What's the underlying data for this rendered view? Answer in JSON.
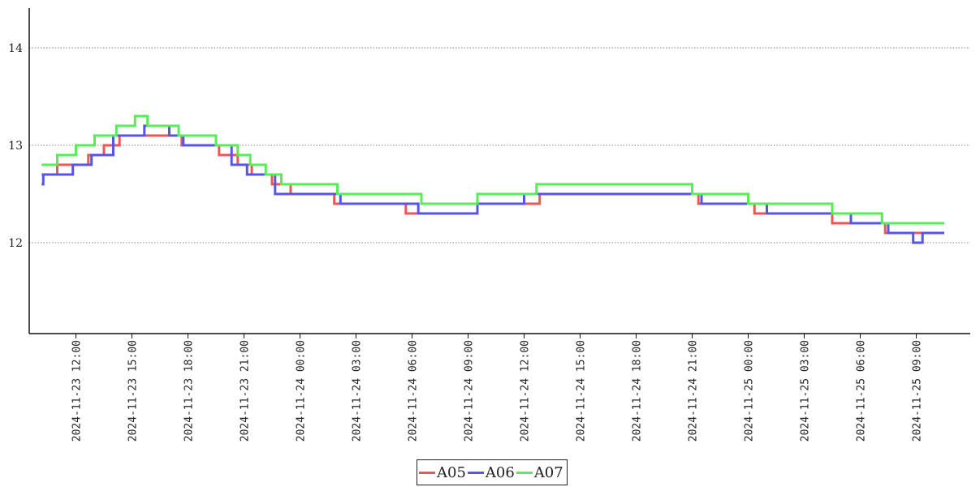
{
  "chart_data": {
    "type": "line",
    "title": "",
    "xlabel": "",
    "ylabel": "",
    "ylim": [
      11.9,
      14.4
    ],
    "xlim": [
      "2024-11-23 09:30",
      "2024-11-25 10:30"
    ],
    "yticks": [
      12,
      13,
      14
    ],
    "xticks": [
      "2024-11-23 12:00",
      "2024-11-23 15:00",
      "2024-11-23 18:00",
      "2024-11-23 21:00",
      "2024-11-24 00:00",
      "2024-11-24 03:00",
      "2024-11-24 06:00",
      "2024-11-24 09:00",
      "2024-11-24 12:00",
      "2024-11-24 15:00",
      "2024-11-24 18:00",
      "2024-11-24 21:00",
      "2024-11-25 00:00",
      "2024-11-25 03:00",
      "2024-11-25 06:00",
      "2024-11-25 09:00"
    ],
    "grid": "horizontal dotted",
    "legend_position": "bottom-center",
    "series": [
      {
        "name": "A05",
        "color": "#ee5555",
        "points": [
          [
            "2024-11-23 10:10",
            12.7
          ],
          [
            "2024-11-23 11:00",
            12.8
          ],
          [
            "2024-11-23 12:40",
            12.9
          ],
          [
            "2024-11-23 13:30",
            13.0
          ],
          [
            "2024-11-23 14:20",
            13.1
          ],
          [
            "2024-11-23 17:40",
            13.0
          ],
          [
            "2024-11-23 19:40",
            12.9
          ],
          [
            "2024-11-23 20:40",
            12.8
          ],
          [
            "2024-11-23 21:25",
            12.7
          ],
          [
            "2024-11-23 22:30",
            12.6
          ],
          [
            "2024-11-23 23:30",
            12.5
          ],
          [
            "2024-11-24 01:50",
            12.4
          ],
          [
            "2024-11-24 05:40",
            12.3
          ],
          [
            "2024-11-24 09:30",
            12.4
          ],
          [
            "2024-11-24 12:50",
            12.5
          ],
          [
            "2024-11-24 21:20",
            12.4
          ],
          [
            "2024-11-25 00:20",
            12.3
          ],
          [
            "2024-11-25 04:30",
            12.2
          ],
          [
            "2024-11-25 07:20",
            12.1
          ],
          [
            "2024-11-25 10:30",
            12.1
          ]
        ]
      },
      {
        "name": "A06",
        "color": "#5555ee",
        "points": [
          [
            "2024-11-23 10:10",
            12.6
          ],
          [
            "2024-11-23 10:15",
            12.7
          ],
          [
            "2024-11-23 11:50",
            12.8
          ],
          [
            "2024-11-23 12:50",
            12.9
          ],
          [
            "2024-11-23 14:00",
            13.1
          ],
          [
            "2024-11-23 15:40",
            13.2
          ],
          [
            "2024-11-23 17:00",
            13.1
          ],
          [
            "2024-11-23 17:45",
            13.0
          ],
          [
            "2024-11-23 19:30",
            13.0
          ],
          [
            "2024-11-23 20:20",
            12.8
          ],
          [
            "2024-11-23 21:10",
            12.7
          ],
          [
            "2024-11-23 22:40",
            12.5
          ],
          [
            "2024-11-24 02:10",
            12.4
          ],
          [
            "2024-11-24 06:20",
            12.3
          ],
          [
            "2024-11-24 09:30",
            12.4
          ],
          [
            "2024-11-24 12:00",
            12.5
          ],
          [
            "2024-11-24 21:30",
            12.4
          ],
          [
            "2024-11-25 01:00",
            12.3
          ],
          [
            "2024-11-25 05:30",
            12.2
          ],
          [
            "2024-11-25 07:30",
            12.1
          ],
          [
            "2024-11-25 08:50",
            12.0
          ],
          [
            "2024-11-25 09:20",
            12.1
          ],
          [
            "2024-11-25 10:30",
            12.1
          ]
        ]
      },
      {
        "name": "A07",
        "color": "#55ee55",
        "points": [
          [
            "2024-11-23 10:10",
            12.8
          ],
          [
            "2024-11-23 11:00",
            12.9
          ],
          [
            "2024-11-23 12:00",
            13.0
          ],
          [
            "2024-11-23 13:00",
            13.1
          ],
          [
            "2024-11-23 14:10",
            13.2
          ],
          [
            "2024-11-23 15:10",
            13.3
          ],
          [
            "2024-11-23 15:50",
            13.2
          ],
          [
            "2024-11-23 17:30",
            13.1
          ],
          [
            "2024-11-23 19:30",
            13.0
          ],
          [
            "2024-11-23 20:40",
            12.9
          ],
          [
            "2024-11-23 21:20",
            12.8
          ],
          [
            "2024-11-23 22:10",
            12.7
          ],
          [
            "2024-11-23 23:00",
            12.6
          ],
          [
            "2024-11-24 02:00",
            12.5
          ],
          [
            "2024-11-24 06:30",
            12.4
          ],
          [
            "2024-11-24 09:30",
            12.5
          ],
          [
            "2024-11-24 12:40",
            12.6
          ],
          [
            "2024-11-24 21:00",
            12.5
          ],
          [
            "2024-11-25 00:00",
            12.4
          ],
          [
            "2024-11-25 04:30",
            12.3
          ],
          [
            "2024-11-25 07:10",
            12.2
          ],
          [
            "2024-11-25 10:30",
            12.2
          ]
        ]
      }
    ]
  }
}
